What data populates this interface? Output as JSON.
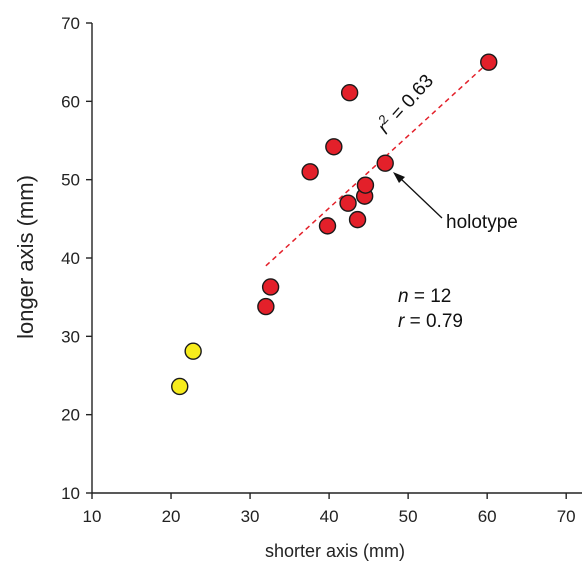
{
  "chart_data": {
    "type": "scatter",
    "xlabel": "shorter axis (mm)",
    "ylabel": "longer axis (mm)",
    "xlim": [
      10,
      72
    ],
    "ylim": [
      10,
      70
    ],
    "x_ticks": [
      10,
      20,
      30,
      40,
      50,
      60,
      70
    ],
    "y_ticks": [
      10,
      20,
      30,
      40,
      50,
      60,
      70
    ],
    "x_tick_labels": [
      "10",
      "20",
      "30",
      "40",
      "50",
      "60",
      "70"
    ],
    "y_tick_labels": [
      "10",
      "20",
      "30",
      "40",
      "50",
      "60",
      "70"
    ],
    "grid": false,
    "series": [
      {
        "color": "#e3202a",
        "points": [
          {
            "x": 32.0,
            "y": 33.8
          },
          {
            "x": 32.6,
            "y": 36.3
          },
          {
            "x": 37.6,
            "y": 51.0
          },
          {
            "x": 39.8,
            "y": 44.1
          },
          {
            "x": 40.6,
            "y": 54.2
          },
          {
            "x": 42.4,
            "y": 47.0
          },
          {
            "x": 42.6,
            "y": 61.1
          },
          {
            "x": 43.6,
            "y": 44.9
          },
          {
            "x": 44.5,
            "y": 47.9
          },
          {
            "x": 44.6,
            "y": 49.3
          },
          {
            "x": 47.1,
            "y": 52.1
          },
          {
            "x": 60.2,
            "y": 65.0
          }
        ]
      },
      {
        "color": "#f7ec1c",
        "points": [
          {
            "x": 21.1,
            "y": 23.6
          },
          {
            "x": 22.8,
            "y": 28.1
          }
        ]
      }
    ],
    "trendline": {
      "x": [
        32.0,
        60.2
      ],
      "y": [
        39.0,
        65.0
      ],
      "color": "#e3202a",
      "style": "dashed",
      "label_r": "r",
      "label_sup": "2",
      "label_value": " = 0.63"
    },
    "annotations": {
      "holotype": "holotype",
      "n_var": "n",
      "n_value": " = 12",
      "r_var": "r",
      "r_value": " = 0.79"
    }
  }
}
